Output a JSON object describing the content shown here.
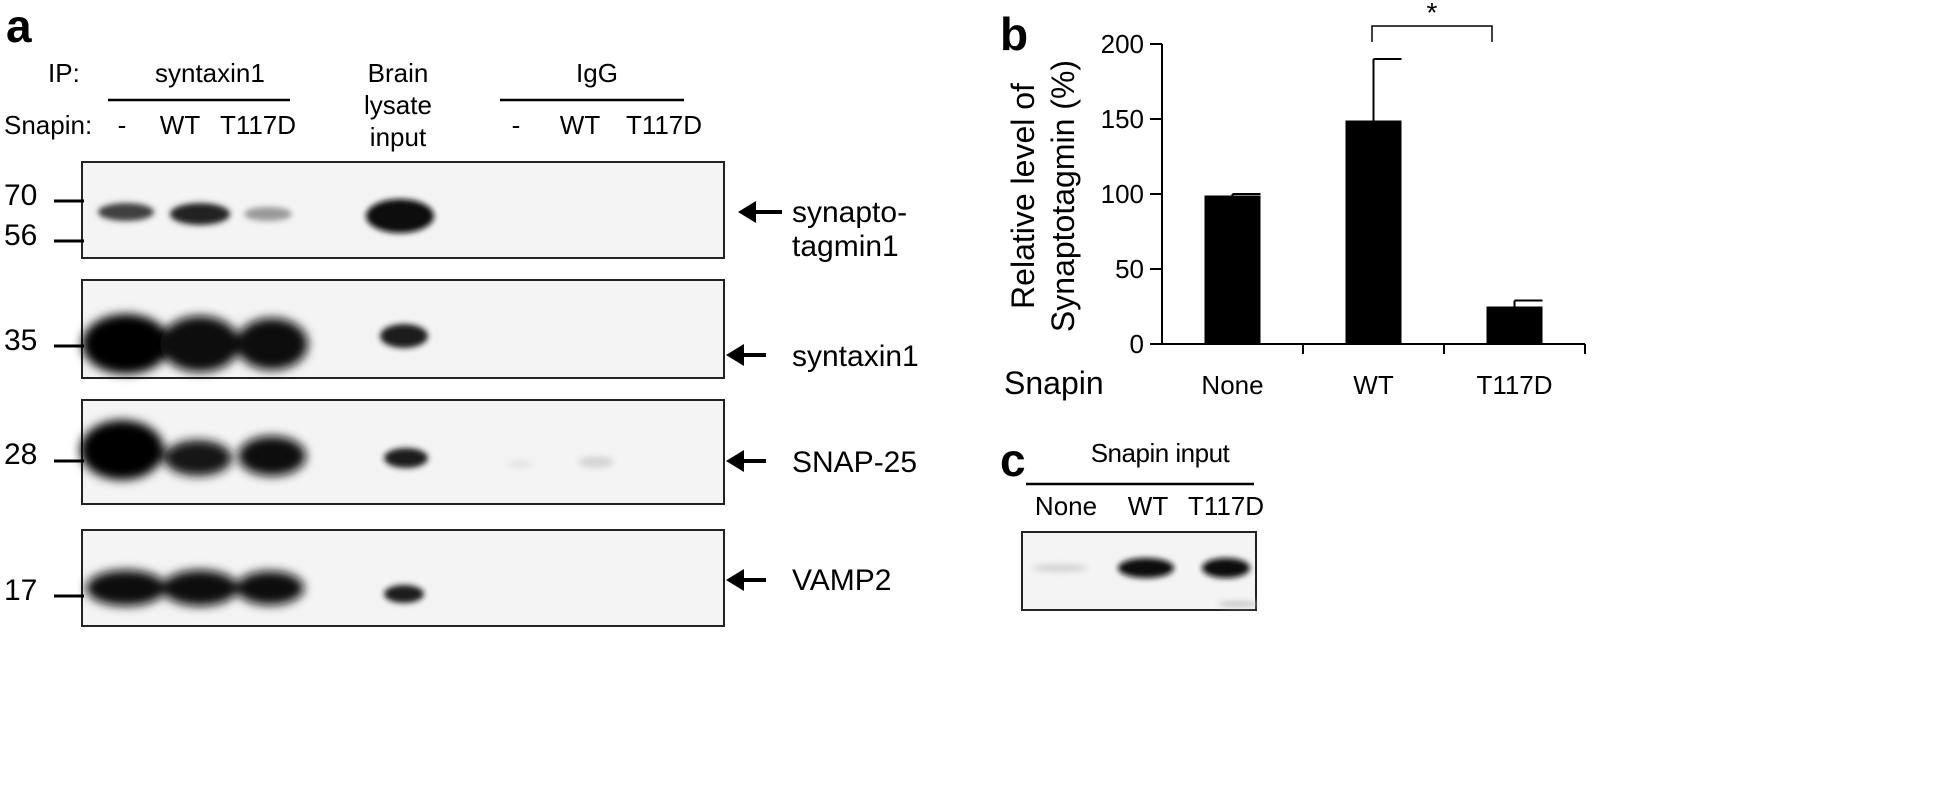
{
  "panel_a": {
    "letter": "a",
    "ip_label": "IP:",
    "ip_syntaxin_label": "syntaxin1",
    "brain_lysate_lines": [
      "Brain",
      "lysate",
      "input"
    ],
    "ip_igg_label": "IgG",
    "snapin_label": "Snapin:",
    "lanes_syntaxin": [
      "-",
      "WT",
      "T117D"
    ],
    "lanes_igg": [
      "-",
      "WT",
      "T117D"
    ],
    "blots": [
      {
        "target_lines": [
          "synapto-",
          "tagmin1"
        ],
        "markers": [
          "70",
          "56"
        ]
      },
      {
        "target_lines": [
          "syntaxin1"
        ],
        "markers": [
          "35"
        ]
      },
      {
        "target_lines": [
          "SNAP-25"
        ],
        "markers": [
          "28"
        ]
      },
      {
        "target_lines": [
          "VAMP2"
        ],
        "markers": [
          "17"
        ]
      }
    ]
  },
  "panel_b": {
    "letter": "b",
    "significance": "*",
    "chart_data": {
      "type": "bar",
      "categories": [
        "None",
        "WT",
        "T117D"
      ],
      "values": [
        99,
        149,
        25
      ],
      "errors": [
        1,
        41,
        4
      ],
      "ylabel_lines": [
        "Relative level of",
        "Synaptotagmin (%)"
      ],
      "xlabel": "Snapin",
      "ylim": [
        0,
        200
      ],
      "yticks": [
        "0",
        "50",
        "100",
        "150",
        "200"
      ],
      "bar_color": "#000000",
      "grid": false
    }
  },
  "panel_c": {
    "letter": "c",
    "title": "Snapin input",
    "lanes": [
      "None",
      "WT",
      "T117D"
    ]
  }
}
